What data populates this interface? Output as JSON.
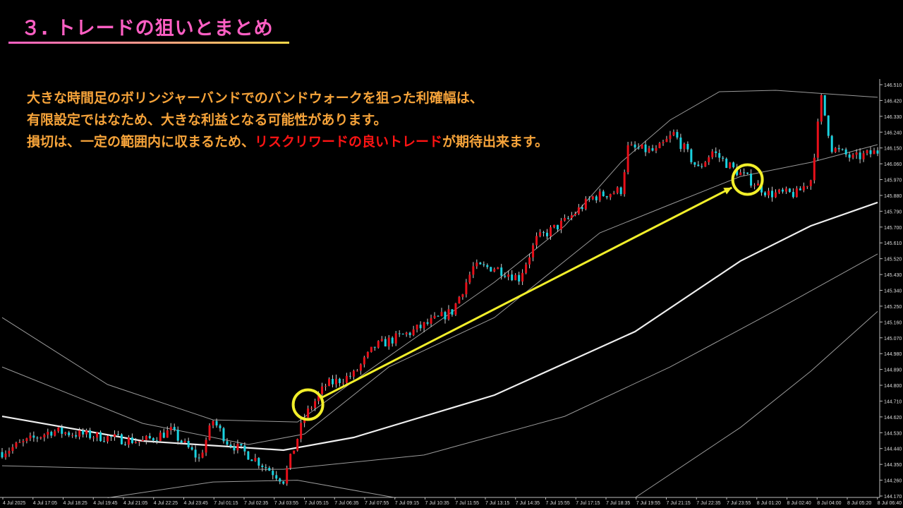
{
  "title": "３. トレードの狙いとまとめ",
  "notes": {
    "line1": "大きな時間足のボリンジャーバンドでのバンドウォークを狙った利確幅は、",
    "line2": "有限設定ではなため、大きな利益となる可能性があります。",
    "line3a": "損切は、一定の範囲内に収まるため、",
    "line3b": "リスクリワードの良いトレード",
    "line3c": "が期待出来ます。"
  },
  "colors": {
    "title": "#ff5fc4",
    "text": "#f7a43a",
    "highlight": "#ff1414",
    "up": "#e8101a",
    "down": "#19d2e0",
    "annotation": "#f2ef2a"
  },
  "chart_data": {
    "type": "candlestick",
    "ylim": [
      144.17,
      146.51
    ],
    "y_ticks": [
      "146.510",
      "146.420",
      "146.330",
      "146.240",
      "146.150",
      "146.060",
      "145.970",
      "145.880",
      "145.790",
      "145.700",
      "145.610",
      "145.520",
      "145.430",
      "145.340",
      "145.250",
      "145.160",
      "145.070",
      "144.980",
      "144.890",
      "144.800",
      "144.710",
      "144.620",
      "144.530",
      "144.440",
      "144.350",
      "144.260",
      "144.170"
    ],
    "x_ticks": [
      "4 Jul 2025",
      "4 Jul 17:05",
      "4 Jul 18:25",
      "4 Jul 19:45",
      "4 Jul 21:05",
      "4 Jul 22:25",
      "4 Jul 23:45",
      "7 Jul 01:15",
      "7 Jul 02:35",
      "7 Jul 03:55",
      "7 Jul 05:15",
      "7 Jul 06:35",
      "7 Jul 07:55",
      "7 Jul 09:15",
      "7 Jul 10:35",
      "7 Jul 11:55",
      "7 Jul 13:15",
      "7 Jul 14:35",
      "7 Jul 15:55",
      "7 Jul 17:15",
      "7 Jul 18:35",
      "7 Jul 19:55",
      "7 Jul 21:15",
      "7 Jul 22:35",
      "7 Jul 23:55",
      "8 Jul 01:20",
      "8 Jul 02:40",
      "8 Jul 04:00",
      "8 Jul 05:20",
      "8 Jul 06:40"
    ],
    "bar_count": 250,
    "price_path": [
      [
        0,
        144.42
      ],
      [
        14,
        144.54
      ],
      [
        40,
        144.48
      ],
      [
        48,
        144.54
      ],
      [
        56,
        144.38
      ],
      [
        60,
        144.6
      ],
      [
        64,
        144.48
      ],
      [
        72,
        144.38
      ],
      [
        80,
        144.26
      ],
      [
        86,
        144.62
      ],
      [
        92,
        144.8
      ],
      [
        100,
        144.86
      ],
      [
        106,
        145.02
      ],
      [
        116,
        145.1
      ],
      [
        128,
        145.22
      ],
      [
        134,
        145.47
      ],
      [
        140,
        145.47
      ],
      [
        147,
        145.41
      ],
      [
        152,
        145.63
      ],
      [
        160,
        145.73
      ],
      [
        168,
        145.87
      ],
      [
        176,
        145.91
      ],
      [
        178,
        146.15
      ],
      [
        186,
        146.13
      ],
      [
        191,
        146.23
      ],
      [
        198,
        146.03
      ],
      [
        202,
        146.13
      ],
      [
        208,
        146.03
      ],
      [
        214,
        145.95
      ],
      [
        218,
        145.89
      ],
      [
        226,
        145.89
      ],
      [
        230,
        145.97
      ],
      [
        233,
        146.43
      ],
      [
        236,
        146.15
      ],
      [
        242,
        146.09
      ],
      [
        249,
        146.13
      ]
    ],
    "lines": [
      {
        "style": "thin",
        "points": [
          [
            0,
            145.185
          ],
          [
            30,
            144.804
          ],
          [
            60,
            144.603
          ],
          [
            84,
            144.591
          ],
          [
            100,
            144.824
          ],
          [
            120,
            145.105
          ],
          [
            140,
            145.386
          ],
          [
            160,
            145.707
          ],
          [
            176,
            146.068
          ],
          [
            190,
            146.309
          ],
          [
            204,
            146.47
          ],
          [
            220,
            146.478
          ],
          [
            249,
            146.438
          ]
        ]
      },
      {
        "style": "thin",
        "points": [
          [
            0,
            144.904
          ],
          [
            40,
            144.583
          ],
          [
            70,
            144.463
          ],
          [
            86,
            144.523
          ],
          [
            110,
            144.904
          ],
          [
            140,
            145.185
          ],
          [
            170,
            145.667
          ],
          [
            190,
            145.828
          ],
          [
            210,
            145.988
          ],
          [
            230,
            146.068
          ],
          [
            249,
            146.169
          ]
        ]
      },
      {
        "style": "thick",
        "points": [
          [
            0,
            144.623
          ],
          [
            40,
            144.483
          ],
          [
            80,
            144.431
          ],
          [
            100,
            144.503
          ],
          [
            140,
            144.744
          ],
          [
            180,
            145.105
          ],
          [
            210,
            145.507
          ],
          [
            230,
            145.707
          ],
          [
            249,
            145.84
          ]
        ]
      },
      {
        "style": "thin",
        "points": [
          [
            0,
            144.342
          ],
          [
            40,
            144.322
          ],
          [
            80,
            144.322
          ],
          [
            120,
            144.403
          ],
          [
            160,
            144.623
          ],
          [
            190,
            144.904
          ],
          [
            220,
            145.226
          ],
          [
            249,
            145.547
          ]
        ]
      },
      {
        "style": "thin",
        "points": [
          [
            30,
            144.16
          ],
          [
            60,
            144.25
          ],
          [
            84,
            144.26
          ],
          [
            112,
            144.16
          ]
        ]
      },
      {
        "style": "thin",
        "points": [
          [
            180,
            144.16
          ],
          [
            210,
            144.56
          ],
          [
            230,
            144.88
          ],
          [
            249,
            145.22
          ]
        ]
      }
    ],
    "annotations": {
      "entry": [
        87,
        144.69
      ],
      "target": [
        212,
        145.97
      ]
    }
  }
}
